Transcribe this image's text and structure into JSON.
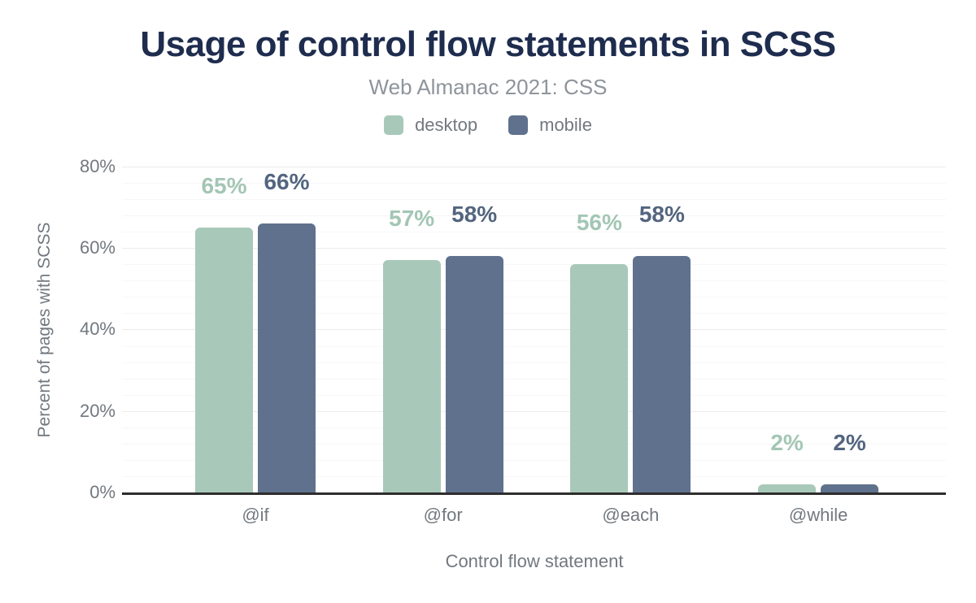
{
  "chart_data": {
    "type": "bar",
    "title": "Usage of control flow statements in SCSS",
    "subtitle": "Web Almanac 2021: CSS",
    "categories": [
      "@if",
      "@for",
      "@each",
      "@while"
    ],
    "series": [
      {
        "name": "desktop",
        "color": "#a8c9b9",
        "label_color": "#a3c6b4",
        "values": [
          65,
          57,
          56,
          2
        ]
      },
      {
        "name": "mobile",
        "color": "#5f718c",
        "label_color": "#53657f",
        "values": [
          66,
          58,
          58,
          2
        ]
      }
    ],
    "xlabel": "Control flow statement",
    "ylabel": "Percent of pages with SCSS",
    "ylim": [
      0,
      80
    ],
    "yticks": [
      0,
      20,
      40,
      60,
      80
    ],
    "ytick_format": "{v}%",
    "data_label_format": "{v}%",
    "grid": {
      "minor_every": 4,
      "major_every": 20,
      "orientation": "horizontal"
    },
    "legend_position": "top",
    "colors": {
      "title": "#1e2c4e",
      "subtitle": "#8e949b",
      "axis_text": "#71787f",
      "axis_line": "#2d2d2d",
      "grid_major": "#ececec",
      "grid_minor": "#f7f7f7"
    }
  }
}
